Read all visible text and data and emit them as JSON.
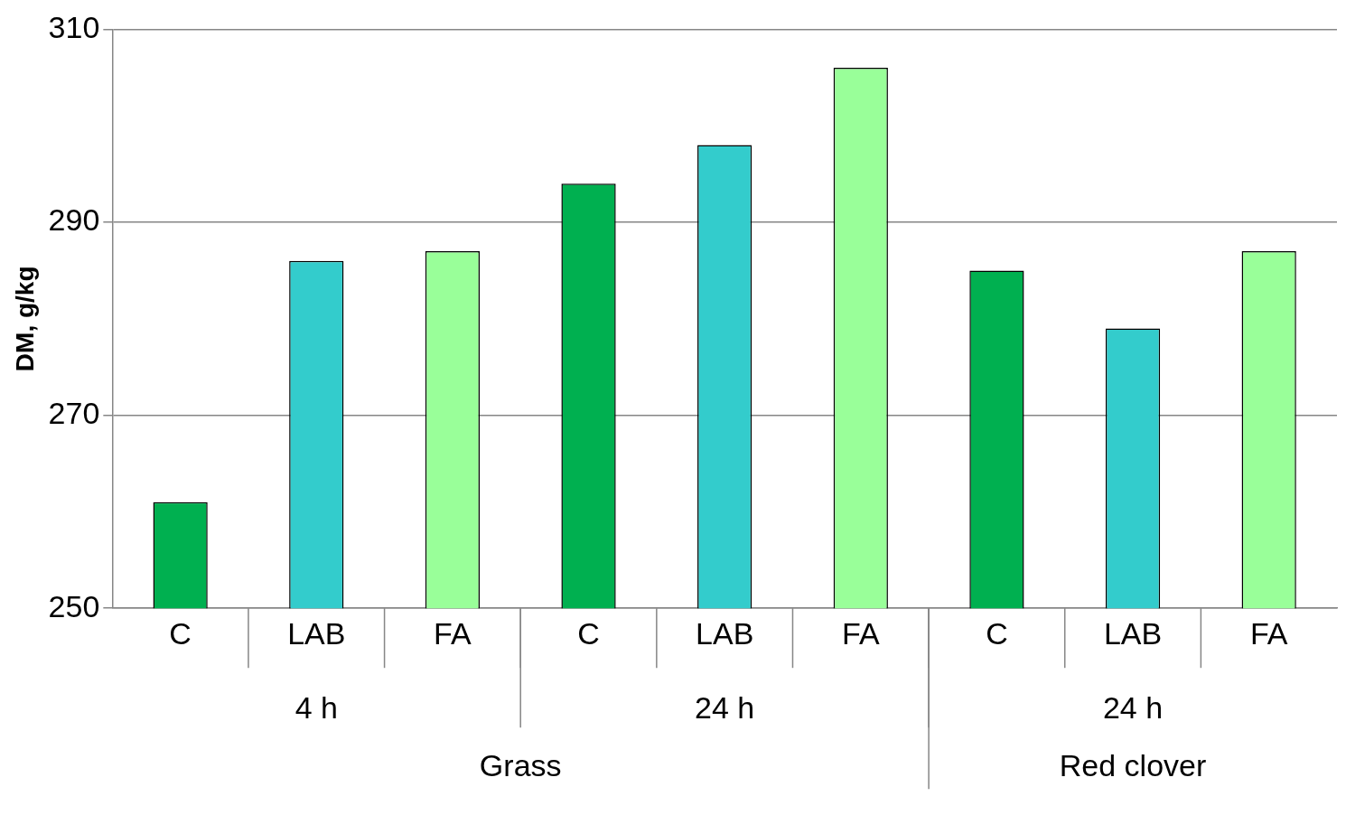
{
  "chart_data": {
    "type": "bar",
    "ylabel": "DM, g/kg",
    "categories": [
      "C",
      "LAB",
      "FA",
      "C",
      "LAB",
      "FA",
      "C",
      "LAB",
      "FA"
    ],
    "values": [
      261,
      286,
      287,
      294,
      298,
      306,
      285,
      279,
      287
    ],
    "colors": [
      "#00b050",
      "#33cccc",
      "#99ff99",
      "#00b050",
      "#33cccc",
      "#99ff99",
      "#00b050",
      "#33cccc",
      "#99ff99"
    ],
    "ylim": [
      250,
      310
    ],
    "yticks": [
      250,
      270,
      290,
      310
    ],
    "grid": "y",
    "legend": false,
    "annotations": [
      "4 h",
      "24 h",
      "24 h",
      "Grass",
      "Red clover"
    ]
  }
}
